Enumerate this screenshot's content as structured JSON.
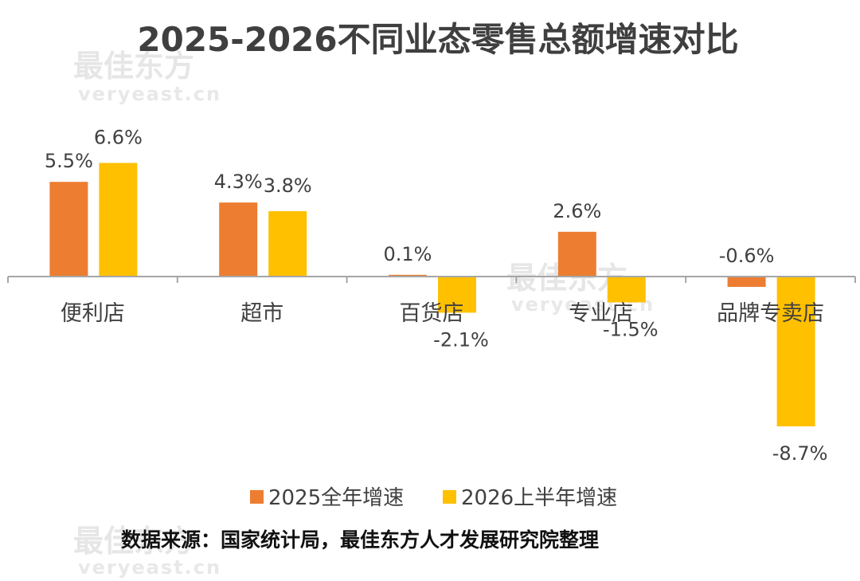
{
  "chart_data": {
    "type": "bar",
    "title": "2025-2026不同业态零售总额增速对比",
    "categories": [
      "便利店",
      "超市",
      "百货店",
      "专业店",
      "品牌专卖店"
    ],
    "series": [
      {
        "name": "2025全年增速",
        "color": "#ED7D31",
        "values": [
          5.5,
          4.3,
          0.1,
          2.6,
          -0.6
        ],
        "labels": [
          "5.5%",
          "4.3%",
          "0.1%",
          "2.6%",
          "-0.6%"
        ]
      },
      {
        "name": "2026上半年增速",
        "color": "#FFC000",
        "values": [
          6.6,
          3.8,
          -2.1,
          -1.5,
          -8.7
        ],
        "labels": [
          "6.6%",
          "3.8%",
          "-2.1%",
          "-1.5%",
          "-8.7%"
        ]
      }
    ],
    "legend_position": "bottom",
    "grid": false,
    "axis_color": "#a6a6a6"
  },
  "source": "数据来源：国家统计局，最佳东方人才发展研究院整理",
  "watermark": {
    "cn": "最佳东方",
    "en": "veryeast.cn"
  }
}
